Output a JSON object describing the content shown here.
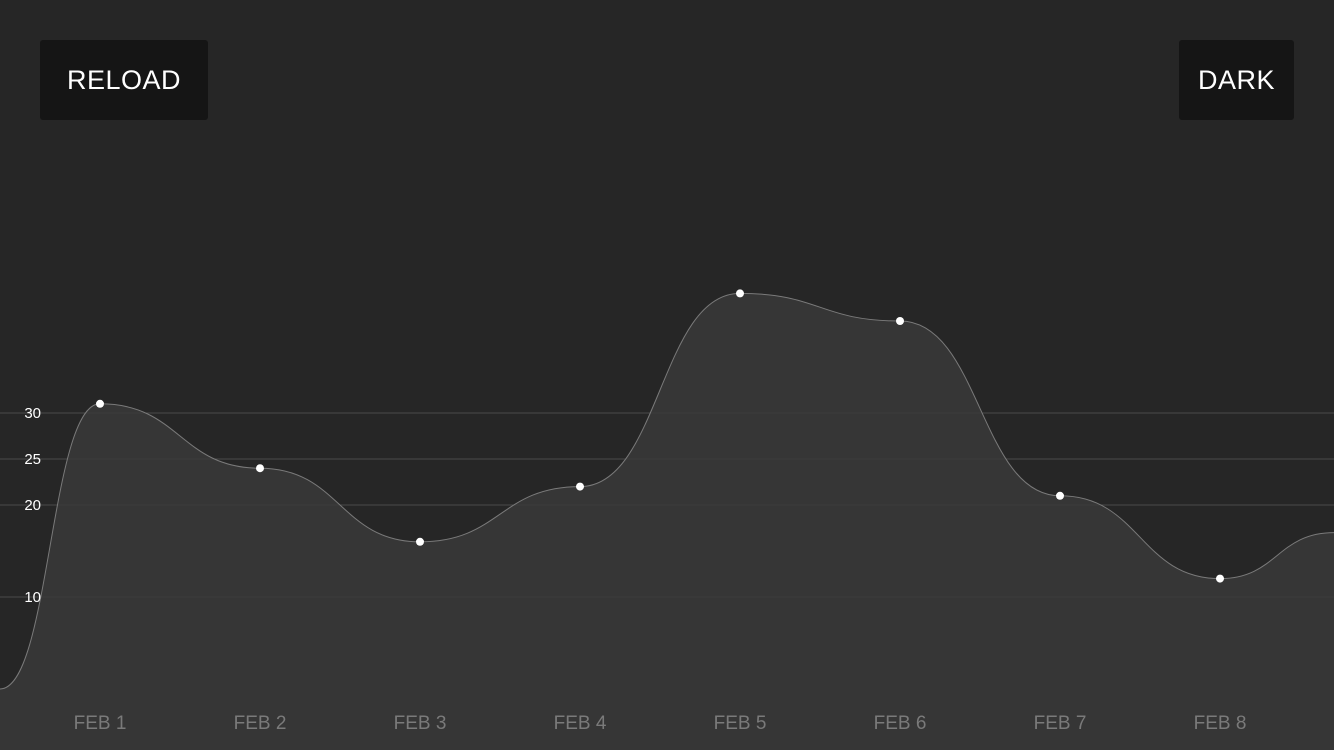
{
  "toolbar": {
    "reload_label": "RELOAD",
    "theme_label": "DARK"
  },
  "colors": {
    "background": "#262626",
    "button_bg": "#151515",
    "area_fill": "#3a3a3a",
    "line": "#7a7a7a",
    "points": "#ffffff"
  },
  "chart_data": {
    "type": "area",
    "categories": [
      "FEB 1",
      "FEB 2",
      "FEB 3",
      "FEB 4",
      "FEB 5",
      "FEB 6",
      "FEB 7",
      "FEB 8"
    ],
    "values": [
      31,
      24,
      16,
      22,
      43,
      40,
      21,
      12
    ],
    "edge_values": {
      "left": 0,
      "right": 17
    },
    "y_ticks": [
      10,
      20,
      25,
      30
    ],
    "ylim": [
      0,
      44
    ],
    "grid": true,
    "curve": "smooth",
    "title": "",
    "xlabel": "",
    "ylabel": ""
  }
}
